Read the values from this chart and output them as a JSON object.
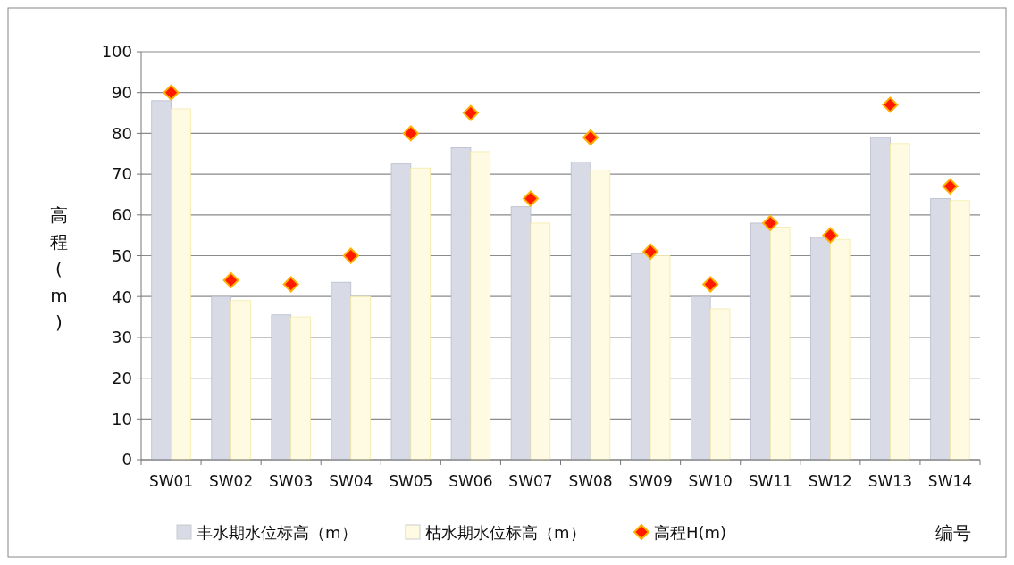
{
  "chart_data": {
    "type": "bar",
    "xlabel": "编号",
    "ylabel": "高程(m)",
    "categories": [
      "SW01",
      "SW02",
      "SW03",
      "SW04",
      "SW05",
      "SW06",
      "SW07",
      "SW08",
      "SW09",
      "SW10",
      "SW11",
      "SW12",
      "SW13",
      "SW14"
    ],
    "series": [
      {
        "name": "丰水期水位标高（m）",
        "color": "#d8dbe6",
        "values": [
          88,
          40,
          35.5,
          43.5,
          72.5,
          76.5,
          62,
          73,
          50.5,
          40,
          58,
          54.5,
          79,
          64
        ]
      },
      {
        "name": "枯水期水位标高（m）",
        "color": "#fffbe3",
        "values": [
          86,
          39,
          35,
          40,
          71.5,
          75.5,
          58,
          71,
          50,
          37,
          57,
          54,
          77.5,
          63.5
        ]
      },
      {
        "name": "高程H(m)",
        "type": "scatter",
        "marker": "diamond",
        "color": "#ff1a00",
        "values": [
          90,
          44,
          43,
          50,
          80,
          85,
          64,
          79,
          51,
          43,
          58,
          55,
          87,
          67
        ]
      }
    ],
    "ylim": [
      0,
      100
    ],
    "yticks": [
      0,
      10,
      20,
      30,
      40,
      50,
      60,
      70,
      80,
      90,
      100
    ],
    "grid": "y",
    "legend": "bottom"
  }
}
